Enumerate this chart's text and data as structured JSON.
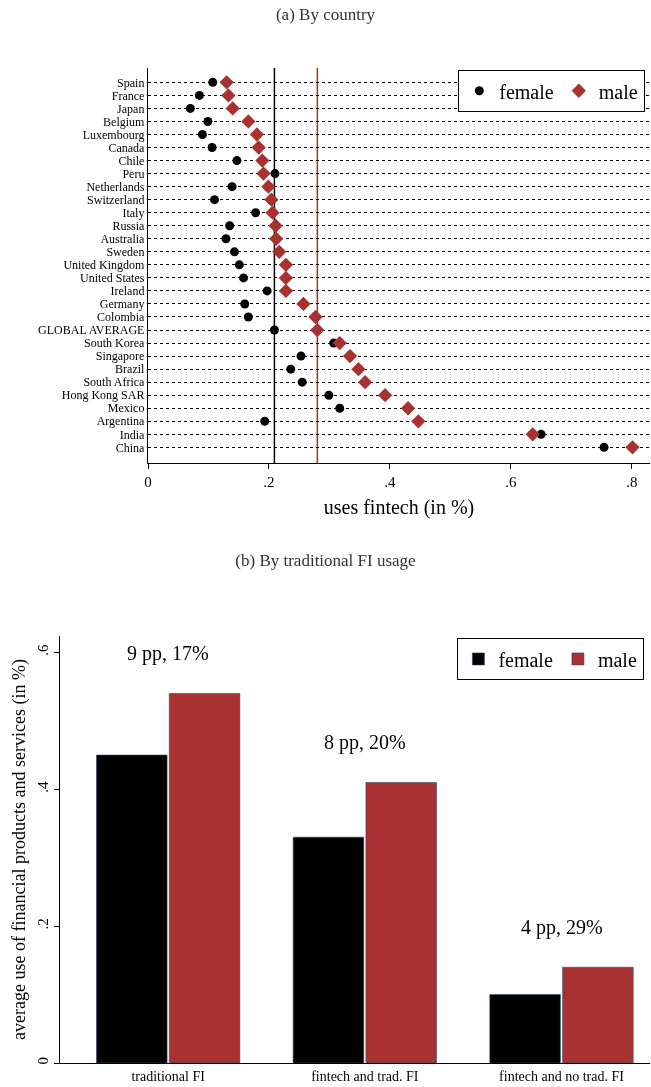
{
  "chart_data": [
    {
      "type": "scatter",
      "title": "(a) By country",
      "xlabel": "uses fintech (in %)",
      "orientation": "horizontal",
      "categories": [
        "Spain",
        "France",
        "Japan",
        "Belgium",
        "Luxembourg",
        "Canada",
        "Chile",
        "Peru",
        "Netherlands",
        "Switzerland",
        "Italy",
        "Russia",
        "Australia",
        "Sweden",
        "United Kingdom",
        "United States",
        "Ireland",
        "Germany",
        "Colombia",
        "GLOBAL AVERAGE",
        "South Korea",
        "Singapore",
        "Brazil",
        "South Africa",
        "Hong Kong SAR",
        "Mexico",
        "Argentina",
        "India",
        "China"
      ],
      "series": [
        {
          "name": "female",
          "color": "#000000",
          "marker": "circle",
          "values": [
            0.107,
            0.085,
            0.07,
            0.099,
            0.09,
            0.106,
            0.147,
            0.21,
            0.139,
            0.11,
            0.178,
            0.135,
            0.129,
            0.143,
            0.151,
            0.158,
            0.197,
            0.16,
            0.166,
            0.209,
            0.307,
            0.253,
            0.236,
            0.255,
            0.299,
            0.317,
            0.193,
            0.65,
            0.754
          ]
        },
        {
          "name": "male",
          "color": "#a83232",
          "marker": "diamond",
          "values": [
            0.13,
            0.133,
            0.14,
            0.166,
            0.18,
            0.183,
            0.189,
            0.191,
            0.199,
            0.204,
            0.206,
            0.211,
            0.212,
            0.217,
            0.228,
            0.228,
            0.228,
            0.257,
            0.277,
            0.28,
            0.317,
            0.334,
            0.348,
            0.359,
            0.392,
            0.43,
            0.447,
            0.636,
            0.801
          ]
        }
      ],
      "xlim": [
        0,
        0.83
      ],
      "xticks": [
        0,
        {
          "value": 0.2,
          "label": ".2"
        },
        {
          "value": 0.4,
          "label": ".4"
        },
        {
          "value": 0.6,
          "label": ".6"
        },
        {
          "value": 0.8,
          "label": ".8"
        }
      ],
      "ref_lines": [
        {
          "axis": "x",
          "value": 0.209,
          "color": "#000000"
        },
        {
          "axis": "x",
          "value": 0.28,
          "color": "#a83232"
        }
      ],
      "grid": "y",
      "legend": "top right"
    },
    {
      "type": "bar",
      "title": "(b) By traditional FI usage",
      "ylabel": "average use of financial products and services (in %)",
      "categories": [
        "traditional FI",
        "fintech and trad. FI",
        "fintech and no trad. FI"
      ],
      "series": [
        {
          "name": "female",
          "color": "#000000",
          "values": [
            0.45,
            0.33,
            0.1
          ]
        },
        {
          "name": "male",
          "color": "#a83232",
          "values": [
            0.54,
            0.41,
            0.14
          ]
        }
      ],
      "ylim": [
        0,
        0.624
      ],
      "yticks": [
        0,
        {
          "value": 0.2,
          "label": ".2"
        },
        {
          "value": 0.4,
          "label": ".4"
        },
        {
          "value": 0.6,
          "label": ".6"
        }
      ],
      "annotations": [
        "9 pp, 17%",
        "8 pp, 20%",
        "4 pp, 29%"
      ],
      "grid": false,
      "legend": "top right"
    }
  ]
}
